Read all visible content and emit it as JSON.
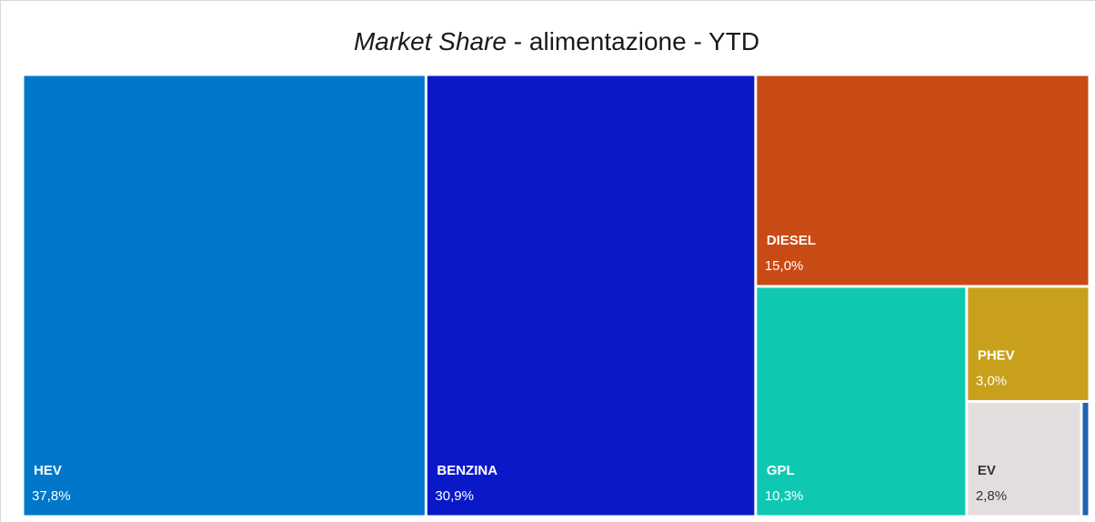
{
  "chart_data": {
    "type": "treemap",
    "title": [
      "Market Share",
      "- alimentazione - YTD"
    ],
    "categories": [
      "HEV",
      "BENZINA",
      "DIESEL",
      "GPL",
      "PHEV",
      "EV",
      null
    ],
    "values": [
      37.8,
      30.9,
      15.0,
      10.3,
      3.0,
      2.8,
      0.2
    ],
    "value_labels": [
      "37,8%",
      "30,9%",
      "15,0%",
      "10,3%",
      "3,0%",
      "2,8%",
      null
    ],
    "colors": [
      "#0077c8",
      "#0a19c8",
      "#c84a14",
      "#0fc8b2",
      "#c8a01c",
      "#e2dede",
      "#1f63b3"
    ]
  }
}
